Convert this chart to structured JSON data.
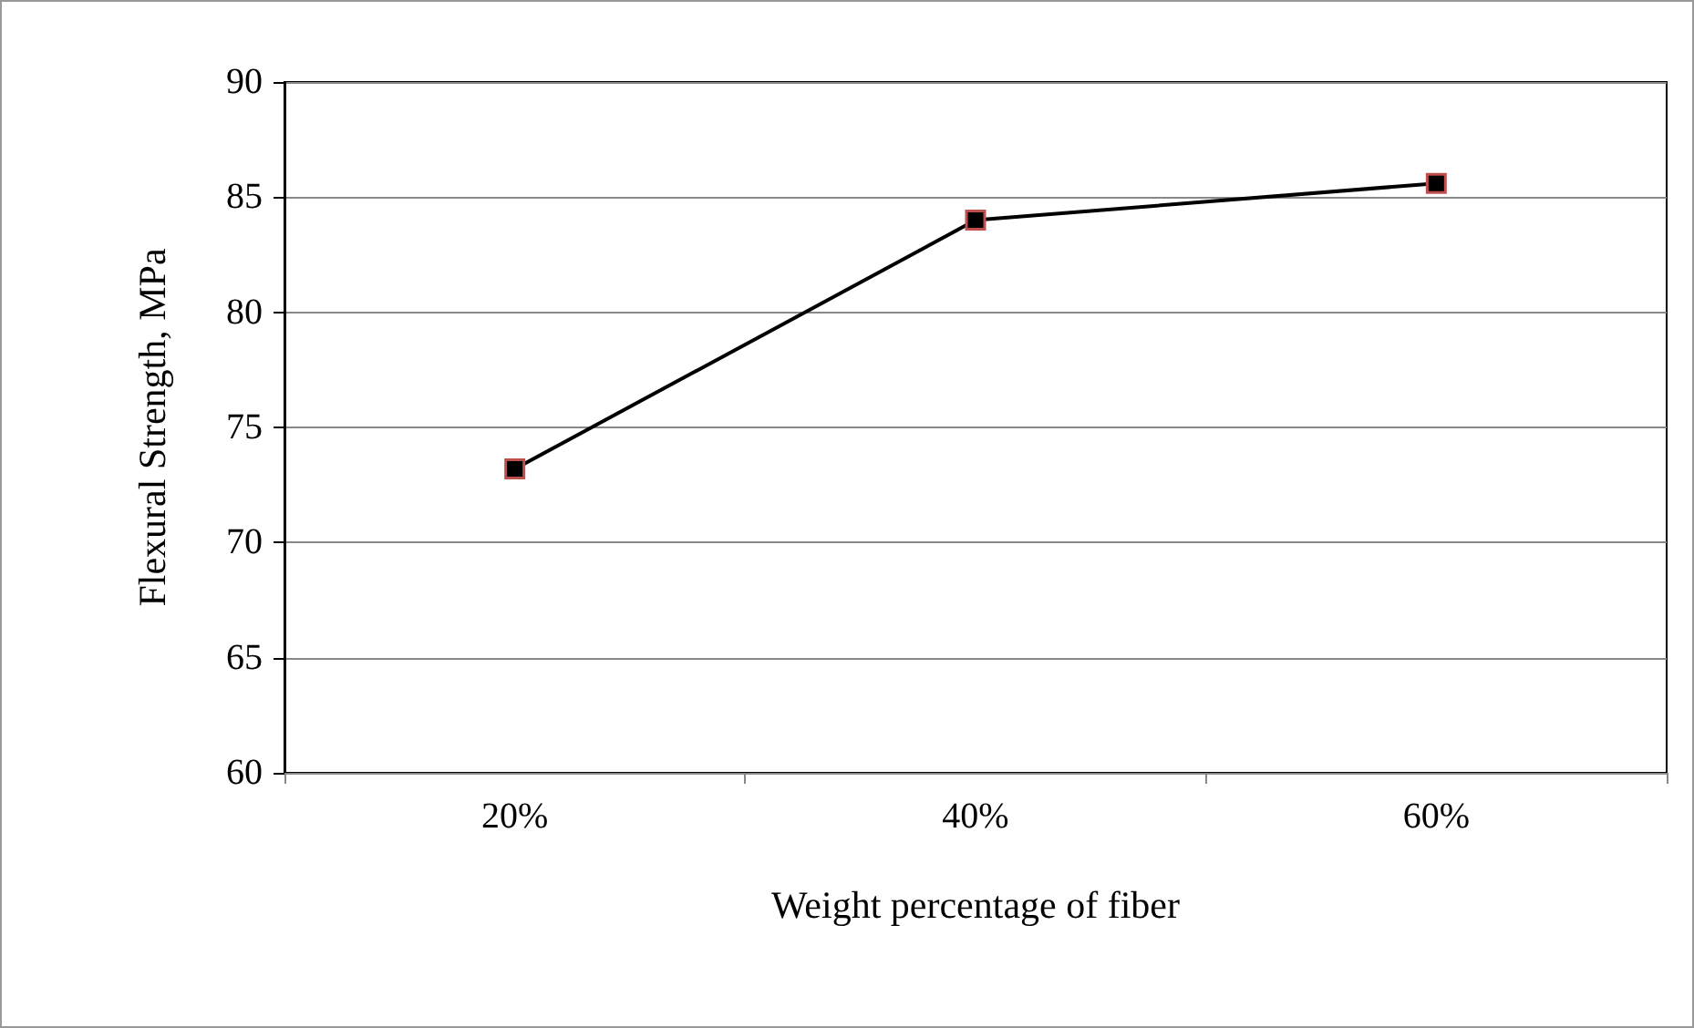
{
  "chart_data": {
    "type": "line",
    "xlabel": "Weight percentage of fiber",
    "ylabel": "Flexural Strength, MPa",
    "categories": [
      "20%",
      "40%",
      "60%"
    ],
    "series": [
      {
        "color": "#000000",
        "values": [
          73.2,
          84.0,
          85.6
        ]
      }
    ],
    "ylim": [
      60,
      90
    ],
    "yticks": [
      60,
      65,
      70,
      75,
      80,
      85,
      90
    ],
    "grid": "y",
    "marker": "square",
    "line_style": "solid"
  }
}
